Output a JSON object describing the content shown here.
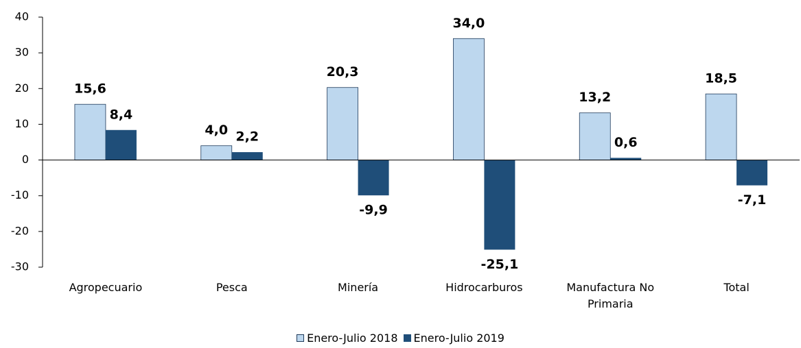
{
  "chart_data": {
    "type": "bar",
    "categories": [
      "Agropecuario",
      "Pesca",
      "Minería",
      "Hidrocarburos",
      "Manufactura No Primaria",
      "Total"
    ],
    "series": [
      {
        "name": "Enero-Julio 2018",
        "color": "#bdd7ee",
        "values": [
          15.6,
          4.0,
          20.3,
          34.0,
          13.2,
          18.5
        ],
        "value_labels": [
          "15,6",
          "4,0",
          "20,3",
          "34,0",
          "13,2",
          "18,5"
        ]
      },
      {
        "name": "Enero-Julio 2019",
        "color": "#1f4e79",
        "values": [
          8.4,
          2.2,
          -9.9,
          -25.1,
          0.6,
          -7.1
        ],
        "value_labels": [
          "8,4",
          "2,2",
          "-9,9",
          "-25,1",
          "0,6",
          "-7,1"
        ]
      }
    ],
    "ylim": [
      -30,
      40
    ],
    "yticks": [
      -30,
      -20,
      -10,
      0,
      10,
      20,
      30,
      40
    ],
    "legend": "bottom"
  }
}
